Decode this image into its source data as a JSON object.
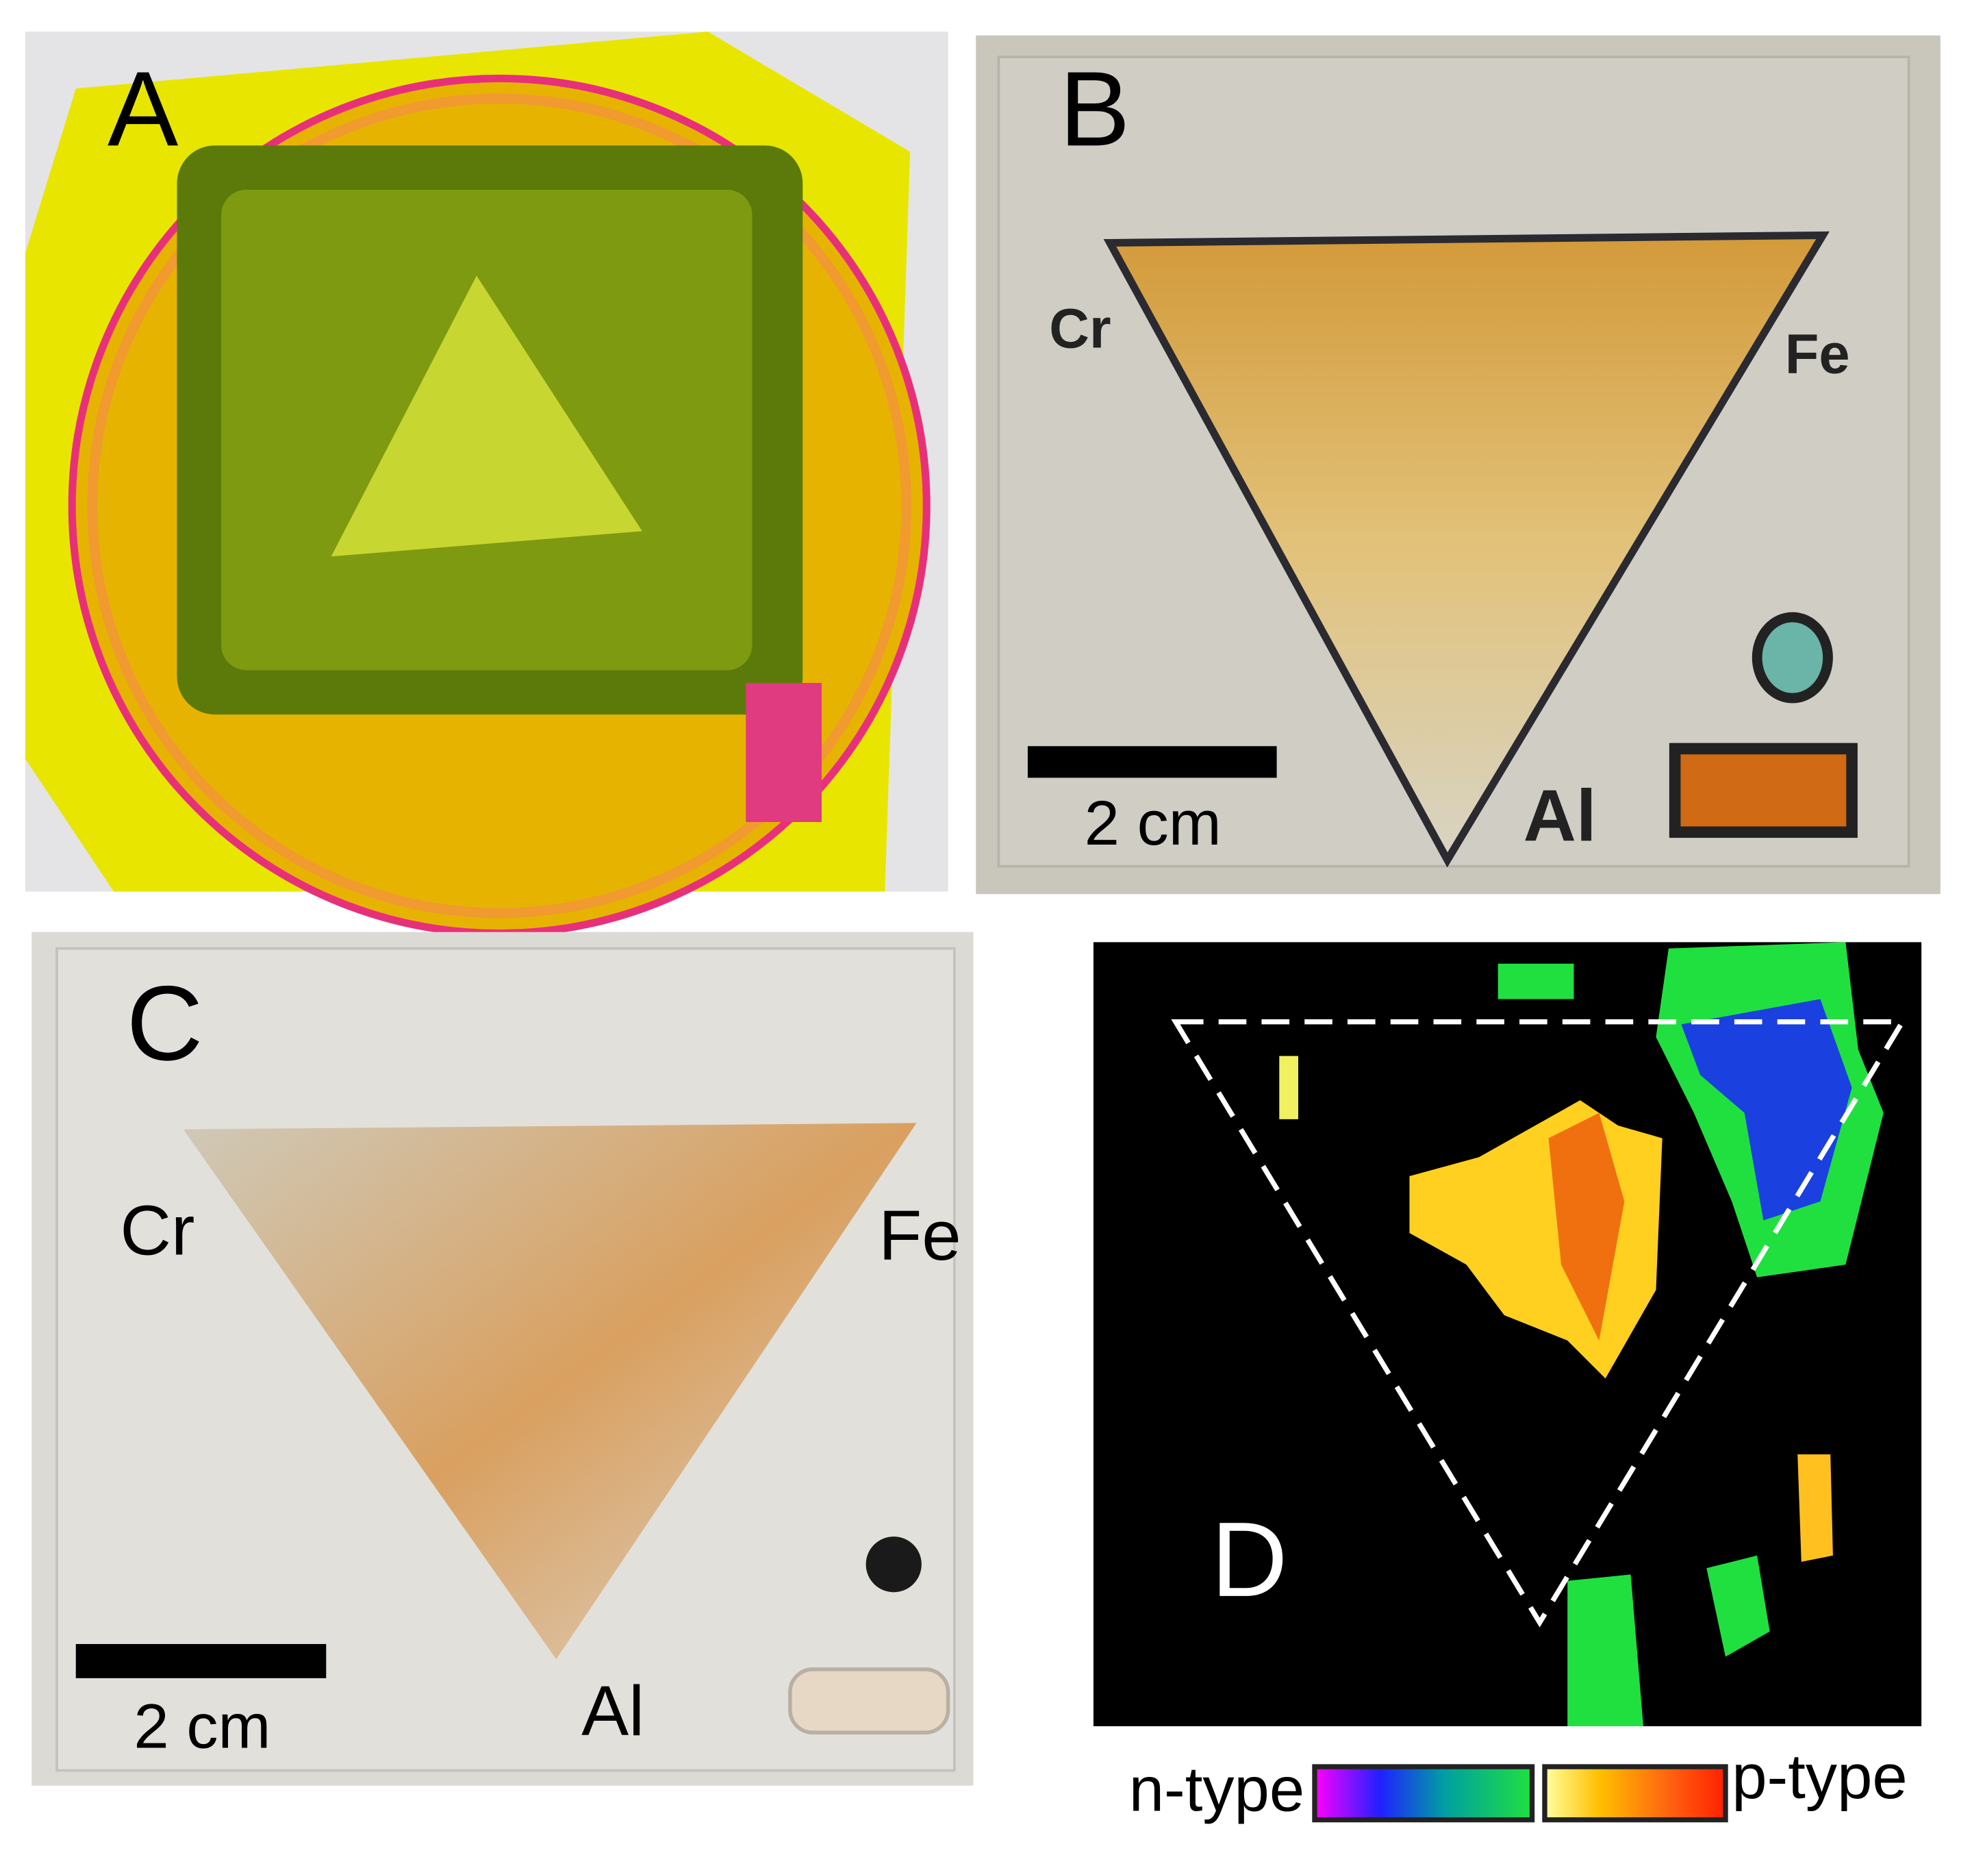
{
  "panels": [
    {
      "label": "A"
    },
    {
      "label": "B",
      "annotations": [
        "Cr",
        "Fe",
        "Al"
      ],
      "scale_bar": "2 cm"
    },
    {
      "label": "C",
      "annotations": [
        "Cr",
        "Fe",
        "Al"
      ],
      "scale_bar": "2 cm"
    },
    {
      "label": "D",
      "colorbar": {
        "left": "n-type",
        "right": "p-type"
      }
    }
  ]
}
